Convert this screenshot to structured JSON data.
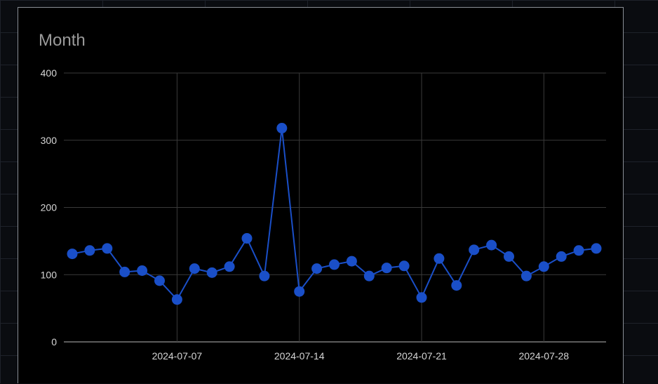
{
  "chart_data": {
    "type": "line",
    "title": "Month",
    "xlabel": "",
    "ylabel": "",
    "ylim": [
      0,
      400
    ],
    "yticks": [
      0,
      100,
      200,
      300,
      400
    ],
    "xticks": [
      "2024-07-07",
      "2024-07-14",
      "2024-07-21",
      "2024-07-28"
    ],
    "grid": true,
    "series_color": "#1a4fc8",
    "series": [
      {
        "x": [
          "2024-07-01",
          "2024-07-02",
          "2024-07-03",
          "2024-07-04",
          "2024-07-05",
          "2024-07-06",
          "2024-07-07",
          "2024-07-08",
          "2024-07-09",
          "2024-07-10",
          "2024-07-11",
          "2024-07-12",
          "2024-07-13",
          "2024-07-14",
          "2024-07-15",
          "2024-07-16",
          "2024-07-17",
          "2024-07-18",
          "2024-07-19",
          "2024-07-20",
          "2024-07-21",
          "2024-07-22",
          "2024-07-23",
          "2024-07-24",
          "2024-07-25",
          "2024-07-26",
          "2024-07-27",
          "2024-07-28",
          "2024-07-29",
          "2024-07-30",
          "2024-07-31"
        ],
        "values": [
          131,
          136,
          139,
          104,
          106,
          91,
          63,
          109,
          103,
          112,
          154,
          98,
          318,
          75,
          109,
          115,
          120,
          98,
          110,
          113,
          66,
          124,
          84,
          137,
          144,
          127,
          98,
          112,
          127,
          136,
          139
        ]
      }
    ]
  }
}
